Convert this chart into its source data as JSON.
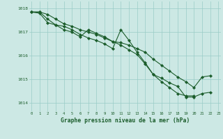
{
  "xlabel": "Graphe pression niveau de la mer (hPa)",
  "background_color": "#cce8e4",
  "grid_color": "#99ccc6",
  "line_color": "#1a5c2a",
  "text_color": "#1a5c2a",
  "xlim": [
    -0.3,
    23.3
  ],
  "ylim": [
    1013.65,
    1018.3
  ],
  "yticks": [
    1014,
    1015,
    1016,
    1017,
    1018
  ],
  "xticks": [
    0,
    1,
    2,
    3,
    4,
    5,
    6,
    7,
    8,
    9,
    10,
    11,
    12,
    13,
    14,
    15,
    16,
    17,
    18,
    19,
    20,
    21,
    22,
    23
  ],
  "series1": [
    1017.85,
    1017.85,
    1017.55,
    1017.3,
    1017.25,
    1017.1,
    1016.9,
    1016.75,
    1016.65,
    1016.5,
    1016.3,
    1017.1,
    1016.65,
    1016.15,
    1015.7,
    1015.2,
    1015.05,
    1014.85,
    1014.7,
    1014.25,
    1014.25,
    1014.4,
    1014.45,
    null
  ],
  "series2": [
    1017.85,
    1017.8,
    1017.4,
    1017.3,
    1017.1,
    1017.0,
    1016.8,
    1017.1,
    1016.95,
    1016.8,
    1016.6,
    1016.45,
    1016.25,
    1016.05,
    1015.65,
    1015.2,
    1014.9,
    1014.65,
    1014.4,
    1014.3,
    1014.3,
    null,
    null,
    null
  ],
  "series3": [
    1017.85,
    1017.85,
    1017.75,
    1017.55,
    1017.35,
    1017.25,
    1017.1,
    1017.0,
    1016.9,
    1016.75,
    1016.6,
    1016.55,
    1016.45,
    1016.3,
    1016.15,
    1015.85,
    1015.6,
    1015.35,
    1015.1,
    1014.9,
    1014.65,
    1015.1,
    1015.15,
    null
  ]
}
